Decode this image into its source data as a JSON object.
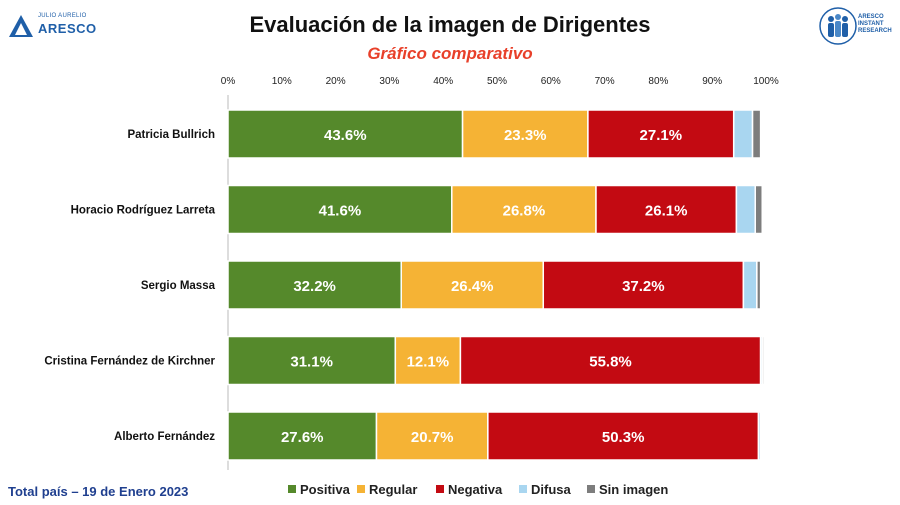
{
  "header": {
    "title": "Evaluación de la imagen de Dirigentes",
    "subtitle": "Gráfico comparativo",
    "logo_left_small": "JULIO AURELIO",
    "logo_left_name": "ARESCO",
    "logo_right_lines": [
      "ARESCO",
      "INSTANT",
      "RESEARCH"
    ]
  },
  "footer": {
    "note": "Total país – 19 de Enero 2023"
  },
  "chart_data": {
    "type": "bar",
    "orientation": "horizontal",
    "stacked": true,
    "categories": [
      "Patricia Bullrich",
      "Horacio Rodríguez Larreta",
      "Sergio Massa",
      "Cristina Fernández de Kirchner",
      "Alberto Fernández"
    ],
    "series": [
      {
        "name": "Positiva",
        "color": "#55892b",
        "values": [
          43.6,
          41.6,
          32.2,
          31.1,
          27.6
        ]
      },
      {
        "name": "Regular",
        "color": "#f5b335",
        "values": [
          23.3,
          26.8,
          26.4,
          12.1,
          20.7
        ]
      },
      {
        "name": "Negativa",
        "color": "#c30a12",
        "values": [
          27.1,
          26.1,
          37.2,
          55.8,
          50.3
        ]
      },
      {
        "name": "Difusa",
        "color": "#a9d6f0",
        "values": [
          3.5,
          3.5,
          2.5,
          0.3,
          0.4
        ]
      },
      {
        "name": "Sin imagen",
        "color": "#7d7d7d",
        "values": [
          1.5,
          1.3,
          0.7,
          0.3,
          0.1
        ]
      }
    ],
    "labeled_series": [
      "Positiva",
      "Regular",
      "Negativa"
    ],
    "value_labels": [
      [
        "43.6%",
        "23.3%",
        "27.1%"
      ],
      [
        "41.6%",
        "26.8%",
        "26.1%"
      ],
      [
        "32.2%",
        "26.4%",
        "37.2%"
      ],
      [
        "31.1%",
        "12.1%",
        "55.8%"
      ],
      [
        "27.6%",
        "20.7%",
        "50.3%"
      ]
    ],
    "x_ticks": [
      "0%",
      "10%",
      "20%",
      "30%",
      "40%",
      "50%",
      "60%",
      "70%",
      "80%",
      "90%",
      "100%"
    ],
    "xlim": [
      0,
      100
    ],
    "legend_position": "bottom",
    "grid": false
  }
}
